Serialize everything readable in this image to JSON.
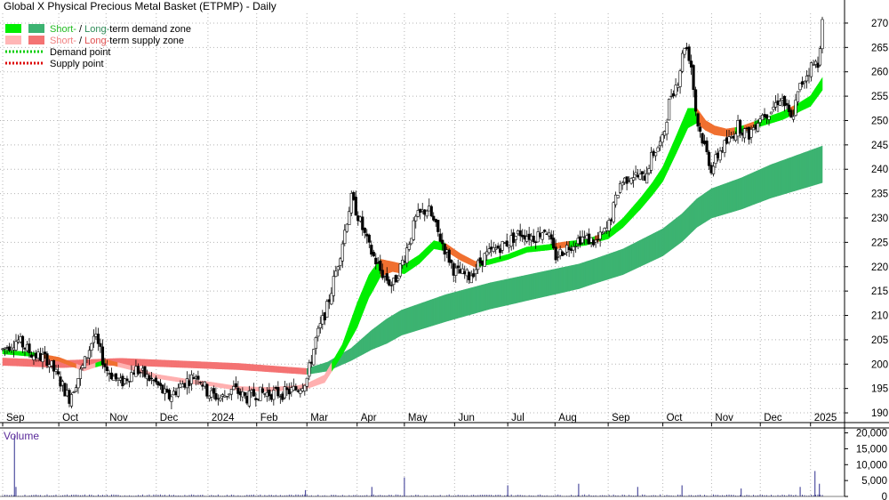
{
  "title": "Global X Physical Precious Metal Basket (ETPMP) - Daily",
  "legend": [
    {
      "part1": "Short-",
      "sep": " / ",
      "part2": "Long-",
      "rest": "term demand zone",
      "c1": "#00ee00",
      "c2": "#3cb371",
      "kind": "box"
    },
    {
      "part1": "Short-",
      "sep": " / ",
      "part2": "Long-",
      "rest": "term supply zone",
      "c1": "#ffb6b6",
      "c2": "#f47373",
      "kind": "box"
    },
    {
      "label": "Demand point",
      "color": "#00cc00",
      "kind": "dots"
    },
    {
      "label": "Supply point",
      "color": "#dd0000",
      "kind": "dots"
    }
  ],
  "colors": {
    "short_demand": "#00ee00",
    "long_demand": "#3cb371",
    "short_supply": "#ffb0b0",
    "long_supply": "#f47373",
    "transition": "#f07030",
    "volume": "#5050a0",
    "candle": "#000000",
    "grid": "#b4b4b4"
  },
  "chart_data": {
    "type": "candlestick",
    "title": "Global X Physical Precious Metal Basket (ETPMP) - Daily",
    "y_ticks": [
      "190",
      "195",
      "200",
      "205",
      "210",
      "215",
      "220",
      "225",
      "230",
      "235",
      "240",
      "245",
      "250",
      "255",
      "260",
      "265",
      "270"
    ],
    "ylim": [
      188,
      272
    ],
    "x_ticks": [
      "Sep",
      "Oct",
      "Nov",
      "Dec",
      "2024",
      "Feb",
      "Mar",
      "Apr",
      "May",
      "Jun",
      "Jul",
      "Aug",
      "Sep",
      "Oct",
      "Nov",
      "Dec",
      "2025"
    ],
    "x_tick_days": [
      0,
      38,
      70,
      104,
      139,
      172,
      206,
      240,
      272,
      306,
      342,
      374,
      410,
      447,
      480,
      513,
      547
    ],
    "x_days_total": 555,
    "price_points": [
      [
        0,
        203
      ],
      [
        10,
        205
      ],
      [
        20,
        202
      ],
      [
        30,
        201
      ],
      [
        38,
        197
      ],
      [
        45,
        193
      ],
      [
        55,
        200
      ],
      [
        62,
        206
      ],
      [
        70,
        199
      ],
      [
        80,
        196
      ],
      [
        90,
        199
      ],
      [
        104,
        196
      ],
      [
        112,
        193
      ],
      [
        122,
        196
      ],
      [
        132,
        198
      ],
      [
        139,
        194
      ],
      [
        148,
        193
      ],
      [
        156,
        195
      ],
      [
        165,
        193
      ],
      [
        172,
        194
      ],
      [
        180,
        194
      ],
      [
        190,
        194
      ],
      [
        200,
        195
      ],
      [
        206,
        197
      ],
      [
        212,
        205
      ],
      [
        220,
        212
      ],
      [
        228,
        222
      ],
      [
        236,
        234
      ],
      [
        240,
        231
      ],
      [
        248,
        224
      ],
      [
        256,
        219
      ],
      [
        264,
        216
      ],
      [
        272,
        222
      ],
      [
        280,
        230
      ],
      [
        288,
        232
      ],
      [
        296,
        226
      ],
      [
        306,
        219
      ],
      [
        316,
        218
      ],
      [
        326,
        222
      ],
      [
        336,
        224
      ],
      [
        342,
        225
      ],
      [
        350,
        227
      ],
      [
        360,
        226
      ],
      [
        368,
        228
      ],
      [
        374,
        222
      ],
      [
        382,
        224
      ],
      [
        392,
        226
      ],
      [
        402,
        225
      ],
      [
        410,
        228
      ],
      [
        418,
        237
      ],
      [
        426,
        239
      ],
      [
        434,
        238
      ],
      [
        440,
        243
      ],
      [
        447,
        246
      ],
      [
        452,
        255
      ],
      [
        457,
        258
      ],
      [
        462,
        266
      ],
      [
        466,
        262
      ],
      [
        470,
        250
      ],
      [
        475,
        245
      ],
      [
        480,
        240
      ],
      [
        486,
        244
      ],
      [
        492,
        246
      ],
      [
        498,
        249
      ],
      [
        505,
        247
      ],
      [
        513,
        251
      ],
      [
        520,
        252
      ],
      [
        527,
        255
      ],
      [
        534,
        250
      ],
      [
        540,
        257
      ],
      [
        547,
        261
      ],
      [
        552,
        262
      ],
      [
        555,
        270
      ]
    ],
    "short_ma": [
      [
        0,
        202.5
      ],
      [
        20,
        202
      ],
      [
        38,
        201
      ],
      [
        55,
        199
      ],
      [
        70,
        200.5
      ],
      [
        90,
        199
      ],
      [
        104,
        197.5
      ],
      [
        125,
        196.5
      ],
      [
        139,
        196
      ],
      [
        160,
        195
      ],
      [
        180,
        194.8
      ],
      [
        200,
        195.2
      ],
      [
        206,
        195.5
      ],
      [
        218,
        197
      ],
      [
        230,
        203
      ],
      [
        240,
        210
      ],
      [
        248,
        216
      ],
      [
        256,
        219.8
      ],
      [
        264,
        220
      ],
      [
        272,
        219.5
      ],
      [
        282,
        221.5
      ],
      [
        292,
        224.5
      ],
      [
        300,
        224
      ],
      [
        310,
        222
      ],
      [
        320,
        220.5
      ],
      [
        330,
        221
      ],
      [
        342,
        222
      ],
      [
        355,
        223.5
      ],
      [
        370,
        224
      ],
      [
        380,
        224.5
      ],
      [
        395,
        225
      ],
      [
        410,
        226.5
      ],
      [
        420,
        229
      ],
      [
        432,
        233
      ],
      [
        440,
        236
      ],
      [
        447,
        239
      ],
      [
        456,
        245
      ],
      [
        464,
        250.5
      ],
      [
        470,
        251
      ],
      [
        476,
        249
      ],
      [
        482,
        248
      ],
      [
        490,
        247.5
      ],
      [
        498,
        248
      ],
      [
        508,
        249
      ],
      [
        518,
        250
      ],
      [
        528,
        251
      ],
      [
        538,
        252.5
      ],
      [
        547,
        254
      ],
      [
        555,
        257.5
      ]
    ],
    "short_band_width": [
      [
        0,
        0.8
      ],
      [
        200,
        0.8
      ],
      [
        230,
        2
      ],
      [
        240,
        5
      ],
      [
        250,
        4.5
      ],
      [
        264,
        2
      ],
      [
        300,
        1.5
      ],
      [
        330,
        1
      ],
      [
        400,
        1.2
      ],
      [
        440,
        2.5
      ],
      [
        464,
        4
      ],
      [
        476,
        2
      ],
      [
        500,
        1.2
      ],
      [
        540,
        1.8
      ],
      [
        555,
        2.5
      ]
    ],
    "long_ma": [
      [
        0,
        200.5
      ],
      [
        40,
        200
      ],
      [
        80,
        200.5
      ],
      [
        120,
        200
      ],
      [
        160,
        199.5
      ],
      [
        206,
        198.5
      ],
      [
        220,
        199.5
      ],
      [
        236,
        202
      ],
      [
        250,
        205
      ],
      [
        270,
        208.5
      ],
      [
        300,
        211.5
      ],
      [
        330,
        214
      ],
      [
        360,
        216
      ],
      [
        390,
        218
      ],
      [
        420,
        221
      ],
      [
        447,
        225
      ],
      [
        460,
        228
      ],
      [
        470,
        231
      ],
      [
        480,
        233
      ],
      [
        500,
        235
      ],
      [
        520,
        237.5
      ],
      [
        540,
        239.5
      ],
      [
        555,
        241
      ]
    ],
    "long_band_width": [
      [
        0,
        1.5
      ],
      [
        206,
        1.2
      ],
      [
        236,
        2.5
      ],
      [
        260,
        5
      ],
      [
        300,
        5.5
      ],
      [
        400,
        5
      ],
      [
        470,
        5.8
      ],
      [
        555,
        7.5
      ]
    ],
    "volume_ticks": [
      "0",
      "5,000",
      "10,000",
      "15,000",
      "20,000"
    ],
    "volume_ylim": [
      0,
      21000
    ],
    "volume_label": "Volume",
    "volume_spikes": [
      [
        8,
        19000
      ],
      [
        9,
        3000
      ],
      [
        205,
        2000
      ],
      [
        250,
        3000
      ],
      [
        272,
        6000
      ],
      [
        342,
        3500
      ],
      [
        390,
        4000
      ],
      [
        430,
        3000
      ],
      [
        460,
        3500
      ],
      [
        500,
        2500
      ],
      [
        540,
        3000
      ],
      [
        550,
        8000
      ],
      [
        553,
        4000
      ]
    ]
  }
}
